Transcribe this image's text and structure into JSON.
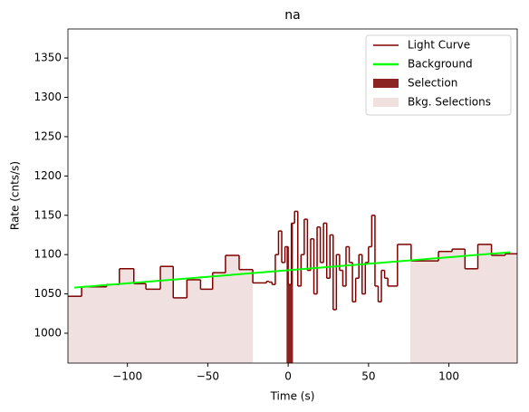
{
  "chart_data": {
    "type": "step",
    "title": "na",
    "xlabel": "Time (s)",
    "ylabel": "Rate (cnts/s)",
    "xlim": [
      -137,
      142.5
    ],
    "ylim": [
      962,
      1387
    ],
    "xticks": [
      {
        "value": -100,
        "label": "−100"
      },
      {
        "value": -50,
        "label": "−50"
      },
      0,
      50,
      100
    ],
    "yticks": [
      1000,
      1050,
      1100,
      1150,
      1200,
      1250,
      1300,
      1350
    ],
    "legend": "upper right",
    "light_curve": {
      "name": "Light Curve",
      "color": "#800000",
      "bins": [
        -137,
        -128.5,
        -113,
        -105,
        -96,
        -88.5,
        -79.5,
        -71.5,
        -63,
        -54.5,
        -47,
        -39,
        -30.5,
        -22,
        -13.5,
        -12,
        -10,
        -8,
        -6,
        -4,
        -2,
        0,
        2,
        4,
        6,
        8,
        10,
        12,
        14,
        16,
        18,
        20,
        22,
        24,
        26,
        28,
        30,
        32,
        34,
        36,
        38,
        40,
        42,
        44,
        46,
        48,
        50,
        52,
        54,
        56,
        58,
        60,
        62,
        68,
        76.5,
        93.5,
        102,
        110,
        118,
        126.5,
        135,
        142.5
      ],
      "values": [
        1047,
        1059,
        1062,
        1082,
        1063,
        1056,
        1085,
        1045,
        1068,
        1056,
        1077,
        1099,
        1081,
        1064,
        1066,
        1065,
        1062,
        1100,
        1130,
        1090,
        1110,
        1062,
        1140,
        1155,
        1060,
        1100,
        1145,
        1080,
        1120,
        1050,
        1135,
        1090,
        1140,
        1070,
        1125,
        1030,
        1100,
        1080,
        1060,
        1110,
        1090,
        1040,
        1070,
        1100,
        1050,
        1090,
        1110,
        1150,
        1060,
        1040,
        1080,
        1070,
        1060,
        1113,
        1092,
        1104,
        1107,
        1082,
        1113,
        1099,
        1101
      ]
    },
    "background": {
      "name": "Background",
      "color": "#00ff00",
      "x": [
        -133,
        138
      ],
      "values": [
        1058,
        1103
      ]
    },
    "selection": {
      "name": "Selection",
      "color": "#8b2323",
      "range": [
        -1,
        3
      ]
    },
    "bkg_selections": {
      "name": "Bkg. Selections",
      "color": "#f0e0e0",
      "ranges": [
        [
          -137,
          -22
        ],
        [
          76,
          142.5
        ]
      ]
    }
  }
}
